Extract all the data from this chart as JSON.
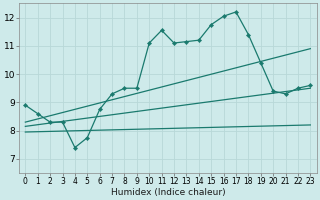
{
  "xlabel": "Humidex (Indice chaleur)",
  "bg_color": "#ceeaea",
  "grid_color": "#b8d8d8",
  "line_color": "#1a7a6e",
  "xlim": [
    -0.5,
    23.5
  ],
  "ylim": [
    6.5,
    12.5
  ],
  "xticks": [
    0,
    1,
    2,
    3,
    4,
    5,
    6,
    7,
    8,
    9,
    10,
    11,
    12,
    13,
    14,
    15,
    16,
    17,
    18,
    19,
    20,
    21,
    22,
    23
  ],
  "yticks": [
    7,
    8,
    9,
    10,
    11,
    12
  ],
  "series1_x": [
    0,
    1,
    2,
    3,
    4,
    5,
    6,
    7,
    8,
    9,
    10,
    11,
    12,
    13,
    14,
    15,
    16,
    17,
    18,
    19,
    20,
    21,
    22,
    23
  ],
  "series1_y": [
    8.9,
    8.6,
    8.3,
    8.3,
    7.4,
    7.75,
    8.75,
    9.3,
    9.5,
    9.5,
    11.1,
    11.55,
    11.1,
    11.15,
    11.2,
    11.75,
    12.05,
    12.2,
    11.4,
    10.4,
    9.4,
    9.3,
    9.5,
    9.6
  ],
  "series2_x": [
    0,
    23
  ],
  "series2_y": [
    8.3,
    10.9
  ],
  "series3_x": [
    0,
    23
  ],
  "series3_y": [
    8.15,
    9.5
  ],
  "series4_x": [
    0,
    23
  ],
  "series4_y": [
    7.95,
    8.2
  ]
}
